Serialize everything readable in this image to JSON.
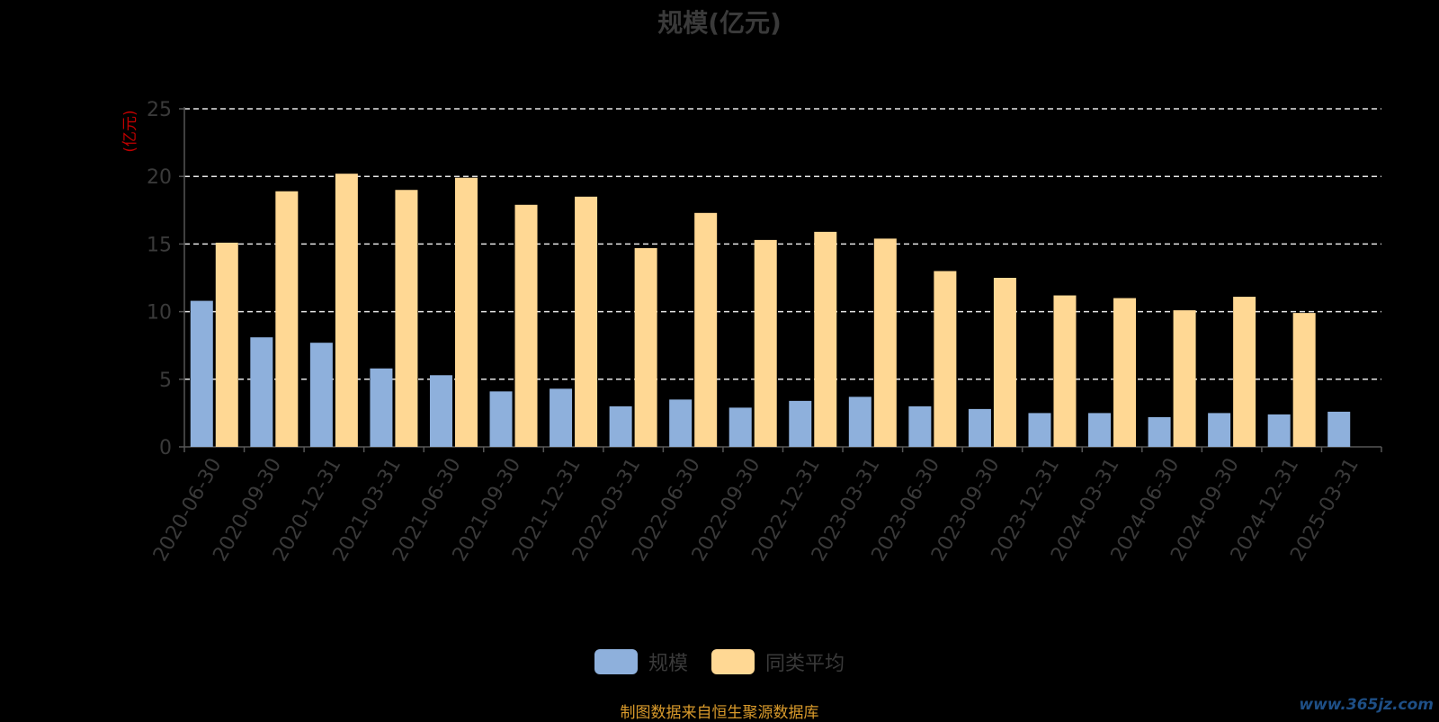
{
  "chart_data": {
    "type": "bar",
    "title": "规模(亿元)",
    "ylabel": "(亿元)",
    "ylim": [
      0,
      25
    ],
    "yticks": [
      0,
      5,
      10,
      15,
      20,
      25
    ],
    "grid": "horizontal dashed",
    "legend_position": "bottom",
    "categories": [
      "2020-06-30",
      "2020-09-30",
      "2020-12-31",
      "2021-03-31",
      "2021-06-30",
      "2021-09-30",
      "2021-12-31",
      "2022-03-31",
      "2022-06-30",
      "2022-09-30",
      "2022-12-31",
      "2023-03-31",
      "2023-06-30",
      "2023-09-30",
      "2023-12-31",
      "2024-03-31",
      "2024-06-30",
      "2024-09-30",
      "2024-12-31",
      "2025-03-31"
    ],
    "series": [
      {
        "name": "规模",
        "color": "#8eb0dc",
        "values": [
          10.8,
          8.1,
          7.7,
          5.8,
          5.3,
          4.1,
          4.3,
          3.0,
          3.5,
          2.9,
          3.4,
          3.7,
          3.0,
          2.8,
          2.5,
          2.5,
          2.2,
          2.5,
          2.4,
          2.6
        ]
      },
      {
        "name": "同类平均",
        "color": "#ffd894",
        "values": [
          15.1,
          18.9,
          20.2,
          19.0,
          19.9,
          17.9,
          18.5,
          14.7,
          17.3,
          15.3,
          15.9,
          15.4,
          13.0,
          12.5,
          11.2,
          11.0,
          10.1,
          11.1,
          9.9,
          null
        ]
      }
    ]
  },
  "footer": {
    "source": "制图数据来自恒生聚源数据库",
    "watermark": "www.365jz.com"
  }
}
